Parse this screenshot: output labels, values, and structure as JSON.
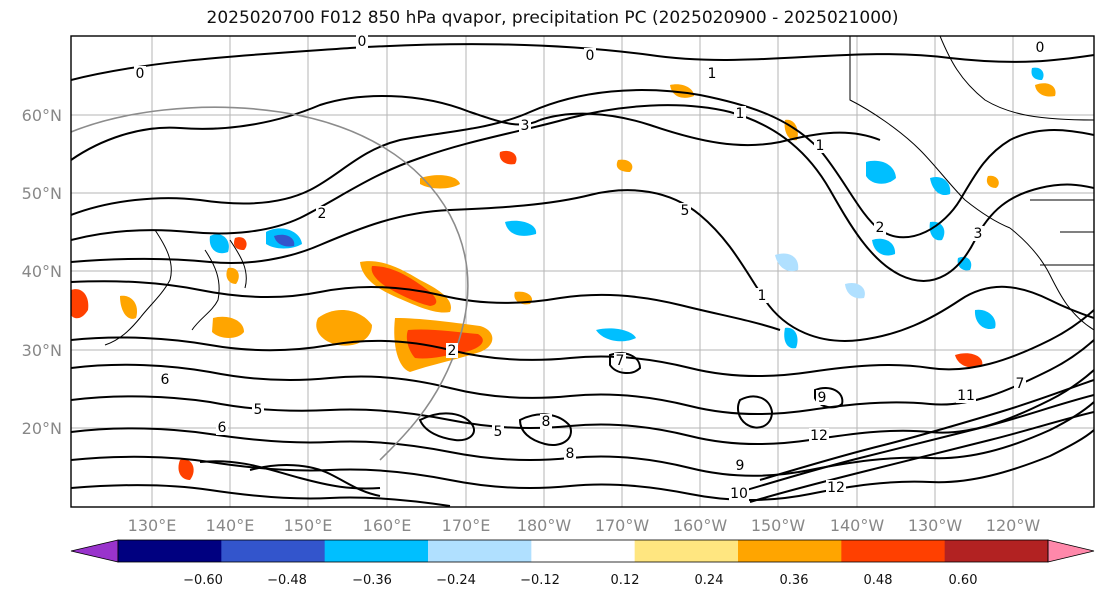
{
  "title": "2025020700 F012 850 hPa qvapor, precipitation PC (2025020900 - 2025021000)",
  "map": {
    "lat_labels": [
      "60°N",
      "50°N",
      "40°N",
      "30°N",
      "20°N"
    ],
    "lon_labels": [
      "130°E",
      "140°E",
      "150°E",
      "160°E",
      "170°E",
      "180°W",
      "170°W",
      "160°W",
      "150°W",
      "140°W",
      "130°W",
      "120°W"
    ],
    "contour_labels": [
      "0",
      "0",
      "0",
      "1",
      "2",
      "3",
      "1",
      "0",
      "1",
      "2",
      "3",
      "5",
      "2",
      "1",
      "6",
      "5",
      "6",
      "7",
      "8",
      "9",
      "12",
      "10",
      "11",
      "12",
      "9",
      "8",
      "5",
      "7"
    ],
    "colors": {
      "land": "#ffffff",
      "grid": "#b5b5b5",
      "contour": "#000000",
      "circle": "#8c8c8c"
    }
  },
  "colorbar": {
    "tick_labels": [
      "−0.60",
      "−0.48",
      "−0.36",
      "−0.24",
      "−0.12",
      "0.12",
      "0.24",
      "0.36",
      "0.48",
      "0.60"
    ],
    "colors": [
      "#9933cc",
      "#000080",
      "#3355cc",
      "#00bfff",
      "#b0e0ff",
      "#ffffff",
      "#ffe680",
      "#ffa500",
      "#ff4000",
      "#b22222",
      "#ff88aa"
    ]
  }
}
